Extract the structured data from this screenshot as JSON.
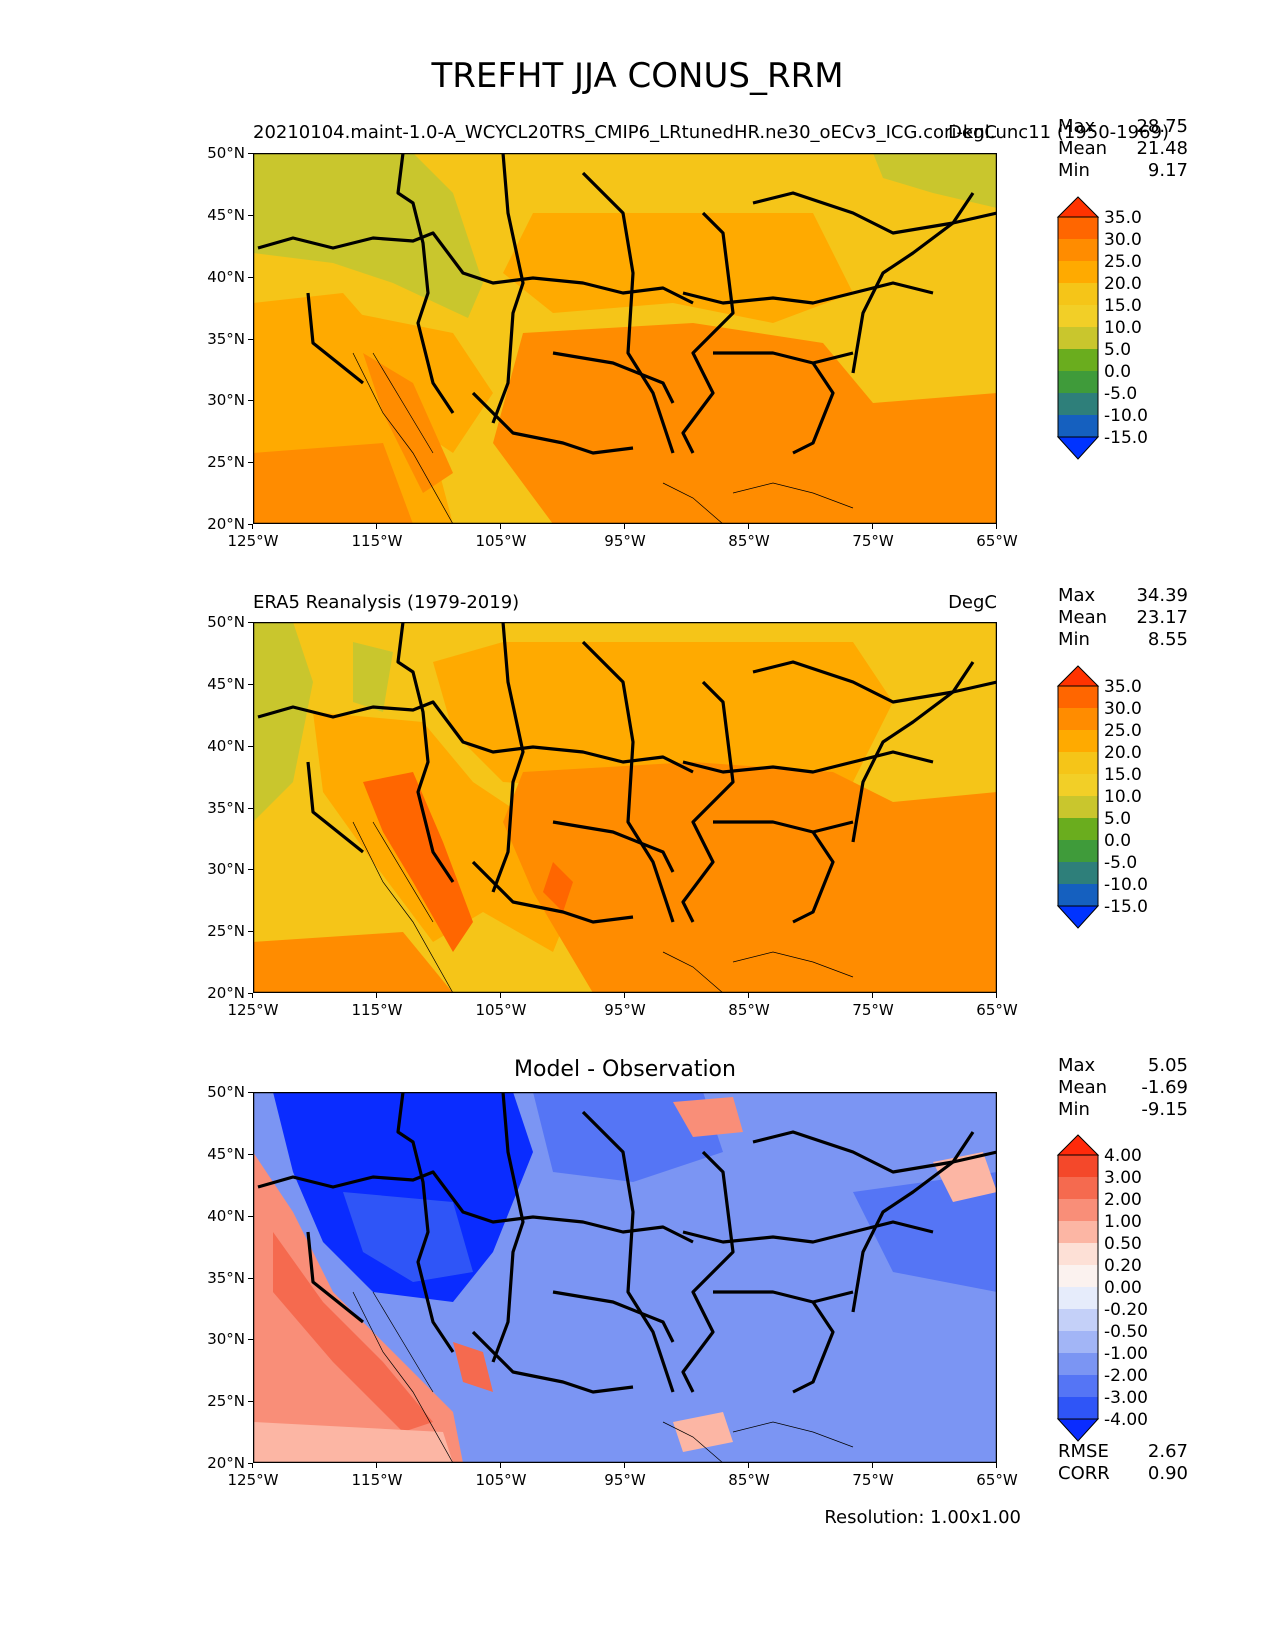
{
  "main_title": "TREFHT JJA CONUS_RRM",
  "footer": "Resolution: 1.00x1.00",
  "chart_data": [
    {
      "type": "heatmap",
      "panel": "test",
      "title": "",
      "left_label": "20210104.maint-1.0-A_WCYCL20TRS_CMIP6_LRtunedHR.ne30_oECv3_ICG.cori-knl.unc11 (1950-1969)",
      "right_label": "DegC",
      "x_ticks": [
        "125°W",
        "115°W",
        "105°W",
        "95°W",
        "85°W",
        "75°W",
        "65°W"
      ],
      "y_ticks": [
        "50°N",
        "45°N",
        "40°N",
        "35°N",
        "30°N",
        "25°N",
        "20°N"
      ],
      "xlim": [
        -125,
        -65
      ],
      "ylim": [
        20,
        50
      ],
      "stats": [
        {
          "label": "Max",
          "value": "28.75"
        },
        {
          "label": "Mean",
          "value": "21.48"
        },
        {
          "label": "Min",
          "value": "9.17"
        }
      ],
      "colorbar": {
        "levels": [
          "35.0",
          "30.0",
          "25.0",
          "20.0",
          "15.0",
          "10.0",
          "5.0",
          "0.0",
          "-5.0",
          "-10.0",
          "-15.0"
        ],
        "colors": [
          "#ff3300",
          "#ff6600",
          "#ff8c00",
          "#ffaa00",
          "#f5c518",
          "#f2cf27",
          "#c9c62d",
          "#6aad1e",
          "#3f9b3a",
          "#2e7f7a",
          "#1560bf",
          "#0033ff"
        ]
      }
    },
    {
      "type": "heatmap",
      "panel": "reference",
      "title": "",
      "left_label": "ERA5 Reanalysis (1979-2019)",
      "right_label": "DegC",
      "x_ticks": [
        "125°W",
        "115°W",
        "105°W",
        "95°W",
        "85°W",
        "75°W",
        "65°W"
      ],
      "y_ticks": [
        "50°N",
        "45°N",
        "40°N",
        "35°N",
        "30°N",
        "25°N",
        "20°N"
      ],
      "xlim": [
        -125,
        -65
      ],
      "ylim": [
        20,
        50
      ],
      "stats": [
        {
          "label": "Max",
          "value": "34.39"
        },
        {
          "label": "Mean",
          "value": "23.17"
        },
        {
          "label": "Min",
          "value": "8.55"
        }
      ],
      "colorbar": {
        "levels": [
          "35.0",
          "30.0",
          "25.0",
          "20.0",
          "15.0",
          "10.0",
          "5.0",
          "0.0",
          "-5.0",
          "-10.0",
          "-15.0"
        ],
        "colors": [
          "#ff3300",
          "#ff6600",
          "#ff8c00",
          "#ffaa00",
          "#f5c518",
          "#f2cf27",
          "#c9c62d",
          "#6aad1e",
          "#3f9b3a",
          "#2e7f7a",
          "#1560bf",
          "#0033ff"
        ]
      }
    },
    {
      "type": "heatmap",
      "panel": "difference",
      "title": "Model - Observation",
      "left_label": "",
      "right_label": "",
      "x_ticks": [
        "125°W",
        "115°W",
        "105°W",
        "95°W",
        "85°W",
        "75°W",
        "65°W"
      ],
      "y_ticks": [
        "50°N",
        "45°N",
        "40°N",
        "35°N",
        "30°N",
        "25°N",
        "20°N"
      ],
      "xlim": [
        -125,
        -65
      ],
      "ylim": [
        20,
        50
      ],
      "stats": [
        {
          "label": "Max",
          "value": "5.05"
        },
        {
          "label": "Mean",
          "value": "-1.69"
        },
        {
          "label": "Min",
          "value": "-9.15"
        }
      ],
      "extra_stats": [
        {
          "label": "RMSE",
          "value": "2.67"
        },
        {
          "label": "CORR",
          "value": "0.90"
        }
      ],
      "colorbar": {
        "levels": [
          "4.00",
          "3.00",
          "2.00",
          "1.00",
          "0.50",
          "0.20",
          "0.00",
          "-0.20",
          "-0.50",
          "-1.00",
          "-2.00",
          "-3.00",
          "-4.00"
        ],
        "colors": [
          "#ff2a0a",
          "#f4482a",
          "#f56a4f",
          "#f98e78",
          "#fcb6a4",
          "#fde0d6",
          "#fbf2ef",
          "#e6ecfb",
          "#c4d0f8",
          "#a2b5f6",
          "#7b95f3",
          "#5575f5",
          "#2f55f7",
          "#0a2cff"
        ]
      }
    }
  ]
}
